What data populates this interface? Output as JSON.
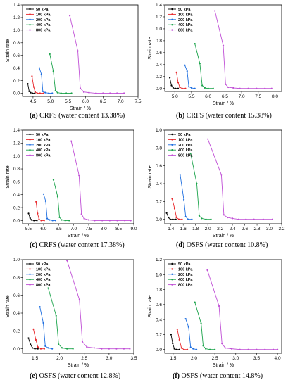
{
  "colors": {
    "50 kPa": "#000000",
    "100 kPa": "#e8262a",
    "200 kPa": "#1f6fe0",
    "400 kPa": "#1aa34a",
    "800 kPa": "#c04fd6"
  },
  "chart_data": [
    {
      "type": "line",
      "panel": "a",
      "caption_letter": "(a)",
      "caption_text": " CRFS (water content 13.38%)",
      "xlabel": "Strain / %",
      "ylabel": "Strain rate",
      "xlim": [
        4.2,
        7.5
      ],
      "ylim": [
        -0.05,
        1.4
      ],
      "xticks": [
        4.5,
        5.0,
        5.5,
        6.0,
        6.5,
        7.0,
        7.5
      ],
      "xticklabels": [
        "4.5",
        "5.0",
        "5.5",
        "6.0",
        "6.5",
        "7.0",
        "7.5"
      ],
      "yticks": [
        0.0,
        0.2,
        0.4,
        0.6,
        0.8,
        1.0,
        1.2,
        1.4
      ],
      "yticklabels": [
        "0.0",
        "0.2",
        "0.4",
        "0.6",
        "0.8",
        "1.0",
        "1.2",
        "1.4"
      ],
      "legend": {
        "position": "top-left",
        "entries": [
          "50 kPa",
          "100 kPa",
          "200 kPa",
          "400 kPa",
          "800 kPa"
        ]
      },
      "series": [
        {
          "name": "50 kPa",
          "x": [
            4.35,
            4.39,
            4.43,
            4.48,
            4.55
          ],
          "y": [
            0.15,
            0.03,
            0.01,
            0.0,
            0.0
          ]
        },
        {
          "name": "100 kPa",
          "x": [
            4.47,
            4.52,
            4.56,
            4.62,
            4.7,
            4.8
          ],
          "y": [
            0.27,
            0.1,
            0.02,
            0.0,
            0.0,
            0.0
          ]
        },
        {
          "name": "200 kPa",
          "x": [
            4.68,
            4.74,
            4.78,
            4.85,
            4.95,
            5.05
          ],
          "y": [
            0.4,
            0.3,
            0.03,
            0.01,
            0.0,
            0.0
          ]
        },
        {
          "name": "400 kPa",
          "x": [
            4.98,
            5.08,
            5.14,
            5.2,
            5.3,
            5.45,
            5.6
          ],
          "y": [
            0.62,
            0.35,
            0.04,
            0.01,
            0.0,
            0.0,
            0.0
          ]
        },
        {
          "name": "800 kPa",
          "x": [
            5.55,
            5.78,
            5.85,
            5.95,
            6.1,
            6.3,
            6.5,
            6.7,
            6.9,
            7.1
          ],
          "y": [
            1.23,
            0.67,
            0.08,
            0.02,
            0.01,
            0.0,
            0.0,
            0.0,
            0.0,
            0.0
          ]
        }
      ]
    },
    {
      "type": "line",
      "panel": "b",
      "caption_letter": "(b)",
      "caption_text": " CRFS (water content 15.38%)",
      "xlabel": "Strain / %",
      "ylabel": "Strain rate",
      "xlim": [
        4.7,
        8.2
      ],
      "ylim": [
        -0.05,
        1.4
      ],
      "xticks": [
        5.0,
        5.5,
        6.0,
        6.5,
        7.0,
        7.5,
        8.0
      ],
      "xticklabels": [
        "5.0",
        "5.5",
        "6.0",
        "6.5",
        "7.0",
        "7.5",
        "8.0"
      ],
      "yticks": [
        0.0,
        0.2,
        0.4,
        0.6,
        0.8,
        1.0,
        1.2,
        1.4
      ],
      "yticklabels": [
        "0.0",
        "0.2",
        "0.4",
        "0.6",
        "0.8",
        "1.0",
        "1.2",
        "1.4"
      ],
      "legend": {
        "position": "top-left",
        "entries": [
          "50 kPa",
          "100 kPa",
          "200 kPa",
          "400 kPa",
          "800 kPa"
        ]
      },
      "series": [
        {
          "name": "50 kPa",
          "x": [
            4.85,
            4.9,
            4.95,
            5.02,
            5.1
          ],
          "y": [
            0.18,
            0.05,
            0.01,
            0.0,
            0.0
          ]
        },
        {
          "name": "100 kPa",
          "x": [
            5.05,
            5.1,
            5.15,
            5.22,
            5.32
          ],
          "y": [
            0.27,
            0.1,
            0.02,
            0.0,
            0.0
          ]
        },
        {
          "name": "200 kPa",
          "x": [
            5.3,
            5.37,
            5.42,
            5.5,
            5.6
          ],
          "y": [
            0.39,
            0.29,
            0.03,
            0.01,
            0.0
          ]
        },
        {
          "name": "400 kPa",
          "x": [
            5.6,
            5.75,
            5.82,
            5.9,
            6.0,
            6.15
          ],
          "y": [
            0.75,
            0.42,
            0.05,
            0.01,
            0.0,
            0.0
          ]
        },
        {
          "name": "800 kPa",
          "x": [
            6.2,
            6.45,
            6.52,
            6.6,
            6.75,
            6.95,
            7.2,
            7.45,
            7.7,
            7.9
          ],
          "y": [
            1.3,
            0.72,
            0.07,
            0.02,
            0.01,
            0.0,
            0.0,
            0.0,
            0.0,
            0.0
          ]
        }
      ]
    },
    {
      "type": "line",
      "panel": "c",
      "caption_letter": "(c)",
      "caption_text": " CRFS (water content 17.38%)",
      "xlabel": "Strain / %",
      "ylabel": "Strain rate",
      "xlim": [
        5.3,
        9.0
      ],
      "ylim": [
        -0.05,
        1.4
      ],
      "xticks": [
        5.5,
        6.0,
        6.5,
        7.0,
        7.5,
        8.0,
        8.5,
        9.0
      ],
      "xticklabels": [
        "5.5",
        "6.0",
        "6.5",
        "7.0",
        "7.5",
        "8.0",
        "8.5",
        "9.0"
      ],
      "yticks": [
        0.0,
        0.2,
        0.4,
        0.6,
        0.8,
        1.0,
        1.2,
        1.4
      ],
      "yticklabels": [
        "0.0",
        "0.2",
        "0.4",
        "0.6",
        "0.8",
        "1.0",
        "1.2",
        "1.4"
      ],
      "legend": {
        "position": "top-left",
        "entries": [
          "50 kPa",
          "100 kPa",
          "200 kPa",
          "400 kPa",
          "800 kPa"
        ]
      },
      "series": [
        {
          "name": "50 kPa",
          "x": [
            5.5,
            5.55,
            5.6,
            5.68,
            5.78
          ],
          "y": [
            0.11,
            0.04,
            0.01,
            0.0,
            0.0
          ]
        },
        {
          "name": "100 kPa",
          "x": [
            5.75,
            5.8,
            5.85,
            5.92,
            6.02
          ],
          "y": [
            0.29,
            0.11,
            0.02,
            0.0,
            0.0
          ]
        },
        {
          "name": "200 kPa",
          "x": [
            6.0,
            6.07,
            6.12,
            6.2,
            6.3,
            6.4
          ],
          "y": [
            0.41,
            0.3,
            0.03,
            0.01,
            0.0,
            0.0
          ]
        },
        {
          "name": "400 kPa",
          "x": [
            6.33,
            6.47,
            6.53,
            6.6,
            6.72,
            6.85
          ],
          "y": [
            0.63,
            0.37,
            0.05,
            0.01,
            0.0,
            0.0
          ]
        },
        {
          "name": "800 kPa",
          "x": [
            6.92,
            7.18,
            7.26,
            7.35,
            7.5,
            7.7,
            7.95,
            8.2,
            8.45,
            8.7,
            8.9
          ],
          "y": [
            1.23,
            0.7,
            0.1,
            0.03,
            0.01,
            0.0,
            0.0,
            0.0,
            0.0,
            0.0,
            0.0
          ]
        }
      ]
    },
    {
      "type": "line",
      "panel": "d",
      "caption_letter": "(d)",
      "caption_text": " OSFS (water content 10.8%)",
      "xlabel": "Strain / %",
      "ylabel": "Strain rate",
      "xlim": [
        1.3,
        3.2
      ],
      "ylim": [
        -0.05,
        1.0
      ],
      "xticks": [
        1.4,
        1.6,
        1.8,
        2.0,
        2.2,
        2.4,
        2.6,
        2.8,
        3.0,
        3.2
      ],
      "xticklabels": [
        "1.4",
        "1.6",
        "1.8",
        "2.0",
        "2.2",
        "2.4",
        "2.6",
        "2.8",
        "3.0",
        "3.2"
      ],
      "yticks": [
        0.0,
        0.2,
        0.4,
        0.6,
        0.8,
        1.0
      ],
      "yticklabels": [
        "0.0",
        "0.2",
        "0.4",
        "0.6",
        "0.8",
        "1.0"
      ],
      "legend": {
        "position": "top-left",
        "entries": [
          "50 kPa",
          "100 kPa",
          "200 kPa",
          "400 kPa",
          "800 kPa"
        ]
      },
      "series": [
        {
          "name": "50 kPa",
          "x": [
            1.33,
            1.36,
            1.39,
            1.43,
            1.48
          ],
          "y": [
            0.07,
            0.02,
            0.0,
            0.0,
            0.0
          ]
        },
        {
          "name": "100 kPa",
          "x": [
            1.42,
            1.46,
            1.49,
            1.53,
            1.58
          ],
          "y": [
            0.23,
            0.12,
            0.02,
            0.0,
            0.0
          ]
        },
        {
          "name": "200 kPa",
          "x": [
            1.55,
            1.61,
            1.64,
            1.68,
            1.74
          ],
          "y": [
            0.5,
            0.22,
            0.03,
            0.0,
            0.0
          ]
        },
        {
          "name": "400 kPa",
          "x": [
            1.72,
            1.82,
            1.86,
            1.9,
            1.97,
            2.05
          ],
          "y": [
            0.74,
            0.4,
            0.04,
            0.01,
            0.0,
            0.0
          ]
        },
        {
          "name": "800 kPa",
          "x": [
            2.0,
            2.22,
            2.26,
            2.32,
            2.4,
            2.5,
            2.62,
            2.75,
            2.9,
            3.05
          ],
          "y": [
            0.9,
            0.5,
            0.05,
            0.02,
            0.01,
            0.0,
            0.0,
            0.0,
            0.0,
            0.0
          ]
        }
      ]
    },
    {
      "type": "line",
      "panel": "e",
      "caption_letter": "(e)",
      "caption_text": " OSFS (water content 12.8%)",
      "xlabel": "Strain / %",
      "ylabel": "Strain rate",
      "xlim": [
        1.25,
        3.5
      ],
      "ylim": [
        -0.05,
        1.0
      ],
      "xticks": [
        1.5,
        2.0,
        2.5,
        3.0,
        3.5
      ],
      "xticklabels": [
        "1.5",
        "2.0",
        "2.5",
        "3.0",
        "3.5"
      ],
      "yticks": [
        0.0,
        0.2,
        0.4,
        0.6,
        0.8,
        1.0
      ],
      "yticklabels": [
        "0.0",
        "0.2",
        "0.4",
        "0.6",
        "0.8",
        "1.0"
      ],
      "legend": {
        "position": "top-left",
        "entries": [
          "50 kPa",
          "100 kPa",
          "200 kPa",
          "400 kPa",
          "800 kPa"
        ]
      },
      "series": [
        {
          "name": "50 kPa",
          "x": [
            1.37,
            1.41,
            1.45,
            1.5,
            1.56
          ],
          "y": [
            0.12,
            0.05,
            0.01,
            0.0,
            0.0
          ]
        },
        {
          "name": "100 kPa",
          "x": [
            1.47,
            1.52,
            1.56,
            1.62,
            1.69
          ],
          "y": [
            0.22,
            0.1,
            0.02,
            0.0,
            0.0
          ]
        },
        {
          "name": "200 kPa",
          "x": [
            1.6,
            1.67,
            1.71,
            1.77,
            1.85
          ],
          "y": [
            0.47,
            0.29,
            0.03,
            0.01,
            0.0
          ]
        },
        {
          "name": "400 kPa",
          "x": [
            1.77,
            1.93,
            1.98,
            2.05,
            2.15,
            2.27
          ],
          "y": [
            0.68,
            0.37,
            0.05,
            0.01,
            0.0,
            0.0
          ]
        },
        {
          "name": "800 kPa",
          "x": [
            2.15,
            2.4,
            2.46,
            2.55,
            2.7,
            2.85,
            3.0,
            3.15,
            3.3,
            3.42
          ],
          "y": [
            0.99,
            0.55,
            0.08,
            0.02,
            0.01,
            0.0,
            0.0,
            0.0,
            0.0,
            0.0
          ]
        }
      ]
    },
    {
      "type": "line",
      "panel": "f",
      "caption_letter": "(f)",
      "caption_text": " OSFS (water content 14.8%)",
      "xlabel": "Strain / %",
      "ylabel": "Strain rate",
      "xlim": [
        1.3,
        4.1
      ],
      "ylim": [
        -0.05,
        1.2
      ],
      "xticks": [
        1.5,
        2.0,
        2.5,
        3.0,
        3.5,
        4.0
      ],
      "xticklabels": [
        "1.5",
        "2.0",
        "2.5",
        "3.0",
        "3.5",
        "4.0"
      ],
      "yticks": [
        0.0,
        0.2,
        0.4,
        0.6,
        0.8,
        1.0,
        1.2
      ],
      "yticklabels": [
        "0.0",
        "0.2",
        "0.4",
        "0.6",
        "0.8",
        "1.0",
        "1.2"
      ],
      "legend": {
        "position": "top-left",
        "entries": [
          "50 kPa",
          "100 kPa",
          "200 kPa",
          "400 kPa",
          "800 kPa"
        ]
      },
      "series": [
        {
          "name": "50 kPa",
          "x": [
            1.45,
            1.49,
            1.53,
            1.58,
            1.65
          ],
          "y": [
            0.2,
            0.08,
            0.01,
            0.0,
            0.0
          ]
        },
        {
          "name": "100 kPa",
          "x": [
            1.6,
            1.65,
            1.7,
            1.76,
            1.84
          ],
          "y": [
            0.27,
            0.13,
            0.02,
            0.0,
            0.0
          ]
        },
        {
          "name": "200 kPa",
          "x": [
            1.8,
            1.87,
            1.92,
            1.98,
            2.06
          ],
          "y": [
            0.41,
            0.3,
            0.03,
            0.01,
            0.0
          ]
        },
        {
          "name": "400 kPa",
          "x": [
            2.02,
            2.17,
            2.22,
            2.28,
            2.38,
            2.5
          ],
          "y": [
            0.63,
            0.35,
            0.05,
            0.01,
            0.0,
            0.0
          ]
        },
        {
          "name": "800 kPa",
          "x": [
            2.32,
            2.6,
            2.67,
            2.75,
            2.9,
            3.1,
            3.3,
            3.5,
            3.7,
            3.9,
            4.0
          ],
          "y": [
            1.06,
            0.58,
            0.08,
            0.02,
            0.01,
            0.0,
            0.0,
            0.0,
            0.0,
            0.0,
            0.0
          ]
        }
      ]
    }
  ]
}
